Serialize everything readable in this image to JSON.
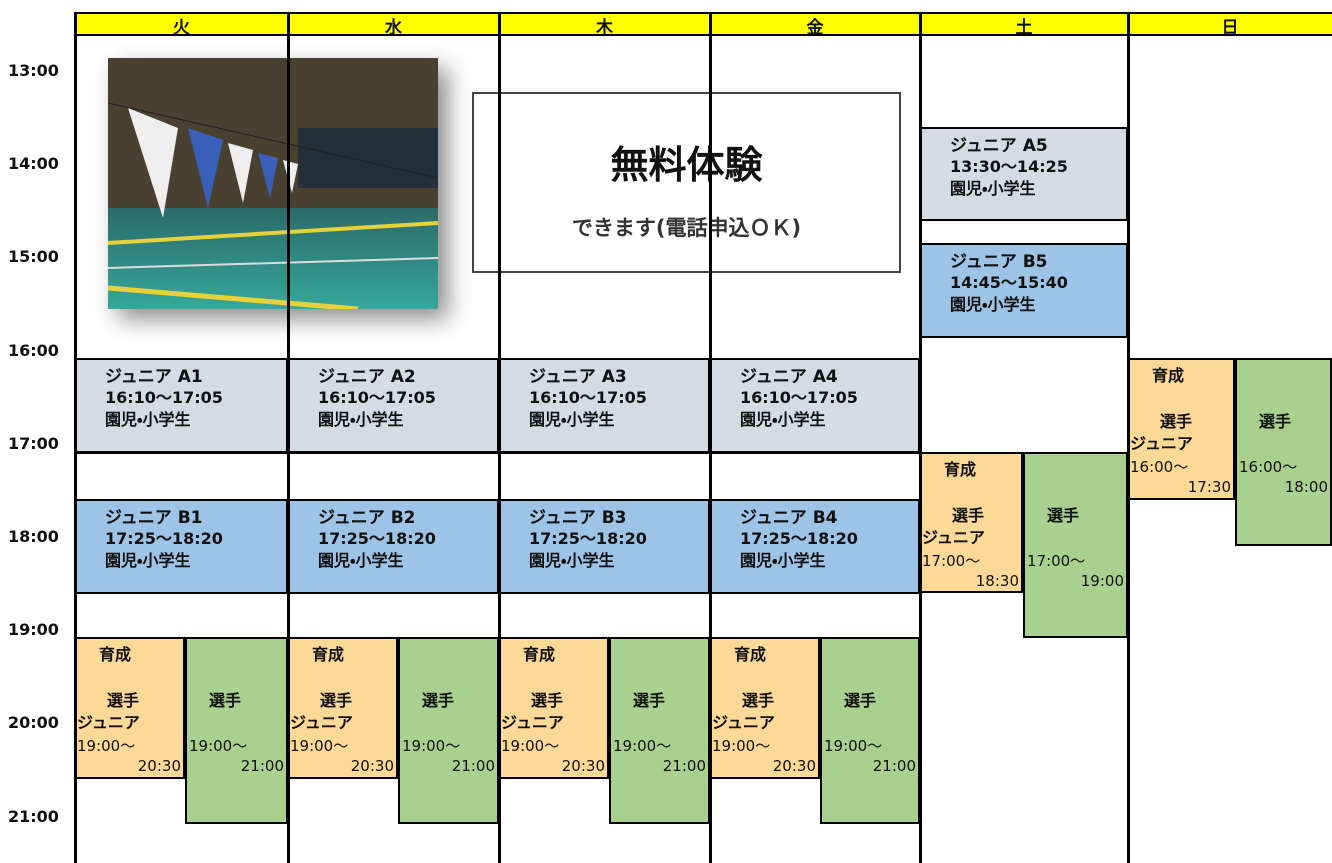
{
  "days": [
    "火",
    "水",
    "木",
    "金",
    "土",
    "日"
  ],
  "times": [
    "13:00",
    "14:00",
    "15:00",
    "16:00",
    "17:00",
    "18:00",
    "19:00",
    "20:00",
    "21:00"
  ],
  "promo": {
    "title": "無料体験",
    "subtitle": "できます(電話申込ＯＫ)"
  },
  "classes": [
    {
      "name": "ジュニア A1",
      "time": "16:10〜17:05",
      "target": "園児・小学生"
    },
    {
      "name": "ジュニア A2",
      "time": "16:10〜17:05",
      "target": "園児・小学生"
    },
    {
      "name": "ジュニア A3",
      "time": "16:10〜17:05",
      "target": "園児・小学生"
    },
    {
      "name": "ジュニア A4",
      "time": "16:10〜17:05",
      "target": "園児・小学生"
    },
    {
      "name": "ジュニア B1",
      "time": "17:25〜18:20",
      "target": "園児・小学生"
    },
    {
      "name": "ジュニア B2",
      "time": "17:25〜18:20",
      "target": "園児・小学生"
    },
    {
      "name": "ジュニア B3",
      "time": "17:25〜18:20",
      "target": "園児・小学生"
    },
    {
      "name": "ジュニア B4",
      "time": "17:25〜18:20",
      "target": "園児・小学生"
    },
    {
      "name": "ジュニア A5",
      "time": "13:30〜14:25",
      "target": "園児・小学生"
    },
    {
      "name": "ジュニア B5",
      "time": "14:45〜15:40",
      "target": "園児・小学生"
    }
  ],
  "elite": [
    {
      "kind": "育成",
      "line2": "選手",
      "line3": "ジュニア",
      "start": "19:00〜",
      "end": "20:30"
    },
    {
      "label": "選手",
      "start": "19:00〜",
      "end": "21:00"
    },
    {
      "kind": "育成",
      "line2": "選手",
      "line3": "ジュニア",
      "start": "19:00〜",
      "end": "20:30"
    },
    {
      "label": "選手",
      "start": "19:00〜",
      "end": "21:00"
    },
    {
      "kind": "育成",
      "line2": "選手",
      "line3": "ジュニア",
      "start": "19:00〜",
      "end": "20:30"
    },
    {
      "label": "選手",
      "start": "19:00〜",
      "end": "21:00"
    },
    {
      "kind": "育成",
      "line2": "選手",
      "line3": "ジュニア",
      "start": "19:00〜",
      "end": "20:30"
    },
    {
      "label": "選手",
      "start": "19:00〜",
      "end": "21:00"
    },
    {
      "kind": "育成",
      "line2": "選手",
      "line3": "ジュニア",
      "start": "17:00〜",
      "end": "18:30"
    },
    {
      "label": "選手",
      "start": "17:00〜",
      "end": "19:00"
    },
    {
      "kind": "育成",
      "line2": "選手",
      "line3": "ジュニア",
      "start": "16:00〜",
      "end": "17:30"
    },
    {
      "label": "選手",
      "start": "16:00〜",
      "end": "18:00"
    }
  ]
}
